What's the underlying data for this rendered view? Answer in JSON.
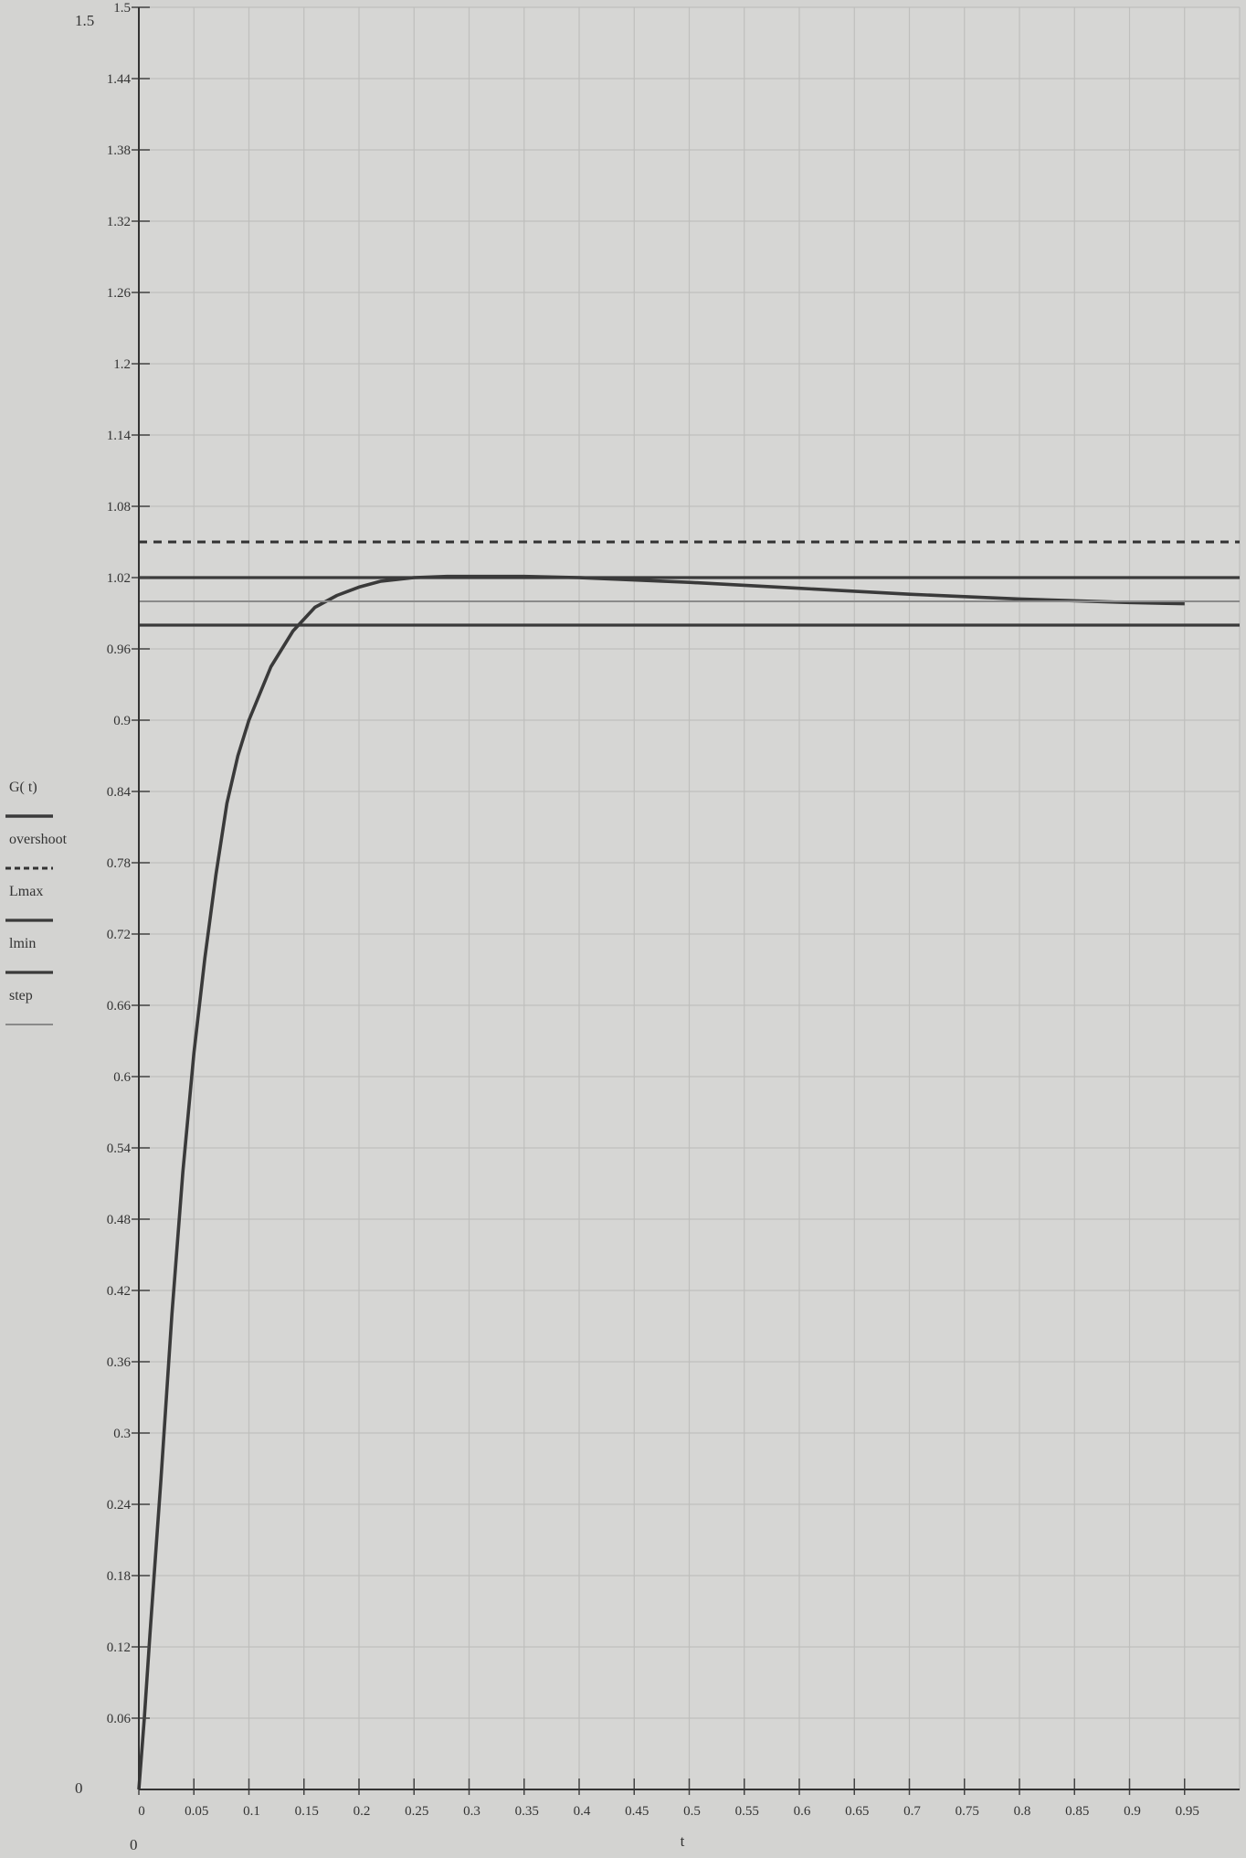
{
  "chart_data": {
    "type": "line",
    "xlabel": "t",
    "ylabel": "",
    "xlim": [
      0,
      1
    ],
    "ylim": [
      0,
      1.5
    ],
    "corner_labels": {
      "y_max": "1.5",
      "y_min": "0",
      "x_min": "0"
    },
    "x_ticks": [
      "0",
      "0.05",
      "0.1",
      "0.15",
      "0.2",
      "0.25",
      "0.3",
      "0.35",
      "0.4",
      "0.45",
      "0.5",
      "0.55",
      "0.6",
      "0.65",
      "0.7",
      "0.75",
      "0.8",
      "0.85",
      "0.9",
      "0.95"
    ],
    "y_ticks": [
      "1.5",
      "1.44",
      "1.38",
      "1.32",
      "1.26",
      "1.2",
      "1.14",
      "1.08",
      "1.02",
      "0.96",
      "0.9",
      "0.84",
      "0.78",
      "0.72",
      "0.66",
      "0.6",
      "0.54",
      "0.48",
      "0.42",
      "0.36",
      "0.3",
      "0.24",
      "0.18",
      "0.12",
      "0.06"
    ],
    "grid": true,
    "legend_position": "left",
    "series": [
      {
        "name": "G( t)",
        "style": "solid-thick",
        "color": "#3a3a3a",
        "x": [
          0,
          0.005,
          0.01,
          0.02,
          0.03,
          0.04,
          0.05,
          0.06,
          0.07,
          0.08,
          0.09,
          0.1,
          0.12,
          0.14,
          0.16,
          0.18,
          0.2,
          0.22,
          0.25,
          0.28,
          0.3,
          0.35,
          0.4,
          0.5,
          0.6,
          0.7,
          0.8,
          0.9,
          0.95
        ],
        "y": [
          0,
          0.06,
          0.13,
          0.26,
          0.4,
          0.52,
          0.62,
          0.7,
          0.77,
          0.83,
          0.87,
          0.9,
          0.945,
          0.975,
          0.995,
          1.005,
          1.012,
          1.017,
          1.02,
          1.021,
          1.021,
          1.021,
          1.02,
          1.016,
          1.011,
          1.006,
          1.002,
          0.999,
          0.998
        ]
      },
      {
        "name": "overshoot",
        "style": "dashed",
        "color": "#333333",
        "x": [
          0,
          1
        ],
        "y": [
          1.05,
          1.05
        ]
      },
      {
        "name": "Lmax",
        "style": "solid",
        "color": "#3a3a3a",
        "x": [
          0,
          1
        ],
        "y": [
          1.02,
          1.02
        ]
      },
      {
        "name": "lmin",
        "style": "solid",
        "color": "#3a3a3a",
        "x": [
          0,
          1
        ],
        "y": [
          0.98,
          0.98
        ]
      },
      {
        "name": "step",
        "style": "thin",
        "color": "#8a8a8a",
        "x": [
          0,
          1
        ],
        "y": [
          1.0,
          1.0
        ]
      }
    ]
  }
}
